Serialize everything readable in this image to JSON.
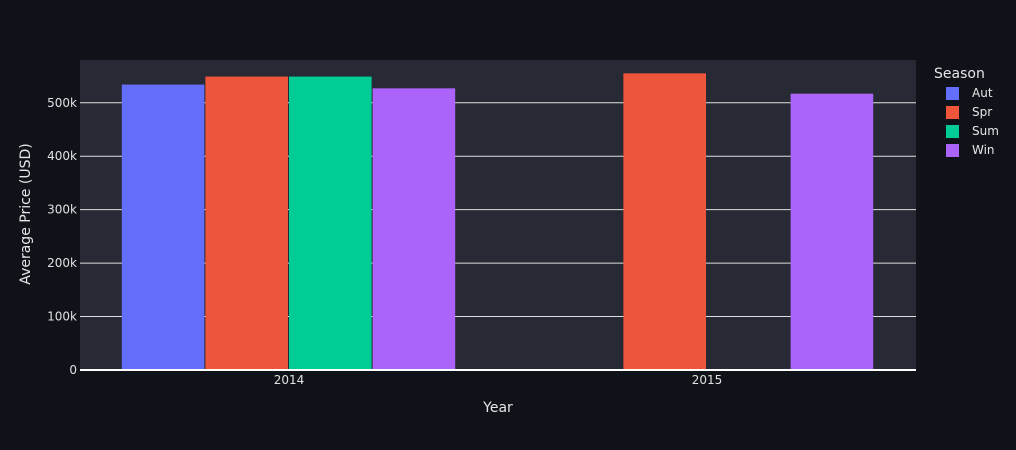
{
  "chart_data": {
    "type": "bar",
    "categories": [
      "2014",
      "2015"
    ],
    "series": [
      {
        "name": "Aut",
        "color": "#636efa",
        "values": [
          534000,
          null
        ]
      },
      {
        "name": "Spr",
        "color": "#ef553b",
        "values": [
          549000,
          555000
        ]
      },
      {
        "name": "Sum",
        "color": "#00cc96",
        "values": [
          549000,
          null
        ]
      },
      {
        "name": "Win",
        "color": "#ab63fa",
        "values": [
          527000,
          517000
        ]
      }
    ],
    "xlabel": "Year",
    "ylabel": "Average Price (USD)",
    "ylim": [
      0,
      580000
    ],
    "yticks": [
      0,
      100000,
      200000,
      300000,
      400000,
      500000
    ],
    "ytick_labels": [
      "0",
      "100k",
      "200k",
      "300k",
      "400k",
      "500k"
    ],
    "legend_title": "Season",
    "legend_position": "top-right",
    "grid": true,
    "plot_background": "#272a34",
    "page_background": "#0f1218"
  }
}
